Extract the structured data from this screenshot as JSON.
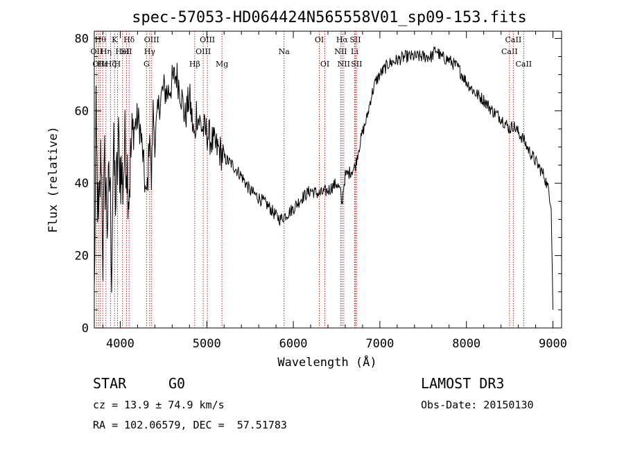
{
  "chart_data": {
    "type": "line",
    "title": "spec-57053-HD064424N565558V01_sp09-153.fits",
    "xlabel": "Wavelength (Å)",
    "ylabel": "Flux (relative)",
    "xlim": [
      3700,
      9100
    ],
    "ylim": [
      0,
      82
    ],
    "xticks": [
      4000,
      5000,
      6000,
      7000,
      8000,
      9000
    ],
    "yticks": [
      0,
      20,
      40,
      60,
      80
    ],
    "grid": false,
    "line_color": "#000000",
    "marker_color": "#b22222",
    "series": [
      {
        "x": [
          3700,
          3720,
          3750,
          3780,
          3800,
          3820,
          3850,
          3880,
          3900,
          3920,
          3950,
          3980,
          4000,
          4030,
          4060,
          4100,
          4130,
          4160,
          4200,
          4230,
          4260,
          4300,
          4320,
          4340,
          4360,
          4380,
          4400,
          4450,
          4500,
          4550,
          4600,
          4650,
          4700,
          4750,
          4800,
          4840,
          4861,
          4880,
          4900,
          4950,
          5000,
          5050,
          5100,
          5150,
          5200,
          5300,
          5400,
          5500,
          5600,
          5700,
          5800,
          5850,
          5900,
          5950,
          6000,
          6100,
          6200,
          6300,
          6400,
          6450,
          6500,
          6540,
          6563,
          6580,
          6600,
          6650,
          6700,
          6720,
          6750,
          6800,
          6850,
          6900,
          6950,
          7000,
          7100,
          7200,
          7300,
          7400,
          7500,
          7600,
          7650,
          7700,
          7800,
          7900,
          8000,
          8100,
          8200,
          8300,
          8400,
          8500,
          8542,
          8600,
          8662,
          8700,
          8800,
          8850,
          8900,
          8950,
          8980,
          9000
        ],
        "y": [
          8,
          55,
          25,
          50,
          20,
          45,
          30,
          42,
          18,
          48,
          35,
          50,
          45,
          40,
          52,
          38,
          50,
          55,
          58,
          55,
          48,
          35,
          42,
          56,
          40,
          60,
          52,
          62,
          66,
          65,
          68,
          70,
          65,
          58,
          64,
          55,
          52,
          60,
          58,
          55,
          54,
          52,
          50,
          49,
          47,
          45,
          42,
          38,
          36,
          34,
          31,
          30,
          31,
          32,
          33,
          36,
          38,
          37,
          38,
          39,
          40,
          38,
          34,
          39,
          42,
          43,
          44,
          45,
          49,
          54,
          58,
          64,
          68,
          70,
          73,
          74,
          75,
          75,
          75,
          75,
          77,
          75,
          74,
          72,
          68,
          65,
          63,
          60,
          58,
          55,
          56,
          54,
          52,
          50,
          46,
          44,
          42,
          38,
          34,
          5
        ]
      }
    ],
    "line_markers": [
      {
        "wl": 3727,
        "label": "OII",
        "row": 1
      },
      {
        "wl": 3750,
        "label": "OII",
        "row": 2
      },
      {
        "wl": 3770,
        "label": "Hθ",
        "row": 0
      },
      {
        "wl": 3797,
        "label": "Hε",
        "row": 2
      },
      {
        "wl": 3835,
        "label": "Hη",
        "row": 1
      },
      {
        "wl": 3889,
        "label": "Hζ",
        "row": 2
      },
      {
        "wl": 3934,
        "label": "K",
        "row": 0
      },
      {
        "wl": 3968,
        "label": "H",
        "row": 2
      },
      {
        "wl": 4026,
        "label": "HeI",
        "row": 1
      },
      {
        "wl": 4072,
        "label": "SII",
        "row": 1
      },
      {
        "wl": 4102,
        "label": "Hδ",
        "row": 0
      },
      {
        "wl": 4304,
        "label": "G",
        "row": 2
      },
      {
        "wl": 4340,
        "label": "Hγ",
        "row": 1
      },
      {
        "wl": 4363,
        "label": "OIII",
        "row": 0
      },
      {
        "wl": 4861,
        "label": "Hβ",
        "row": 2
      },
      {
        "wl": 4959,
        "label": "OIII",
        "row": 1
      },
      {
        "wl": 5007,
        "label": "OIII",
        "row": 0
      },
      {
        "wl": 5175,
        "label": "Mg",
        "row": 2
      },
      {
        "wl": 5893,
        "label": "Na",
        "row": 1
      },
      {
        "wl": 6300,
        "label": "OI",
        "row": 0
      },
      {
        "wl": 6364,
        "label": "OI",
        "row": 2
      },
      {
        "wl": 6548,
        "label": "NII",
        "row": 1
      },
      {
        "wl": 6563,
        "label": "Hα",
        "row": 0
      },
      {
        "wl": 6583,
        "label": "NII",
        "row": 2
      },
      {
        "wl": 6708,
        "label": "Li",
        "row": 1
      },
      {
        "wl": 6716,
        "label": "SII",
        "row": 0
      },
      {
        "wl": 6731,
        "label": "SII",
        "row": 2
      },
      {
        "wl": 8498,
        "label": "CaII",
        "row": 1
      },
      {
        "wl": 8542,
        "label": "CaII",
        "row": 0
      },
      {
        "wl": 8662,
        "label": "CaII",
        "row": 2
      }
    ]
  },
  "info": {
    "object_type": "STAR",
    "subclass": "G0",
    "survey": "LAMOST DR3",
    "redshift": "cz = 13.9 ± 74.9 km/s",
    "obs_date": "Obs-Date: 20150130",
    "coords": "RA = 102.06579, DEC =  57.51783"
  }
}
